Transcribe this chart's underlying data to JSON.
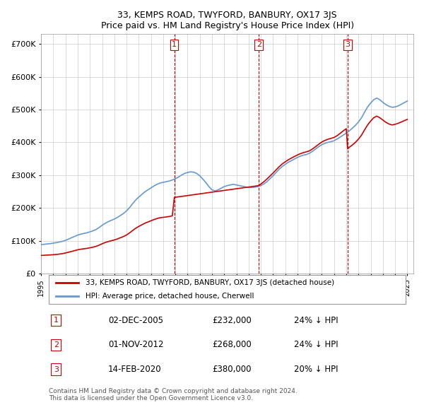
{
  "title": "33, KEMPS ROAD, TWYFORD, BANBURY, OX17 3JS",
  "subtitle": "Price paid vs. HM Land Registry's House Price Index (HPI)",
  "ylabel_ticks": [
    "£0",
    "£100K",
    "£200K",
    "£300K",
    "£400K",
    "£500K",
    "£600K",
    "£700K"
  ],
  "ylim": [
    0,
    730000
  ],
  "xlim_start": 1995.0,
  "xlim_end": 2025.5,
  "sale_dates": [
    2005.917,
    2012.833,
    2020.12
  ],
  "sale_prices": [
    232000,
    268000,
    380000
  ],
  "sale_labels": [
    "1",
    "2",
    "3"
  ],
  "sale_date_strs": [
    "02-DEC-2005",
    "01-NOV-2012",
    "14-FEB-2020"
  ],
  "sale_price_strs": [
    "£232,000",
    "£268,000",
    "£380,000"
  ],
  "sale_pct_strs": [
    "24% ↓ HPI",
    "24% ↓ HPI",
    "20% ↓ HPI"
  ],
  "red_color": "#cc0000",
  "blue_color": "#6699cc",
  "vline_color": "#cc0000",
  "grid_color": "#cccccc",
  "background_color": "#ffffff",
  "legend_label_red": "33, KEMPS ROAD, TWYFORD, BANBURY, OX17 3JS (detached house)",
  "legend_label_blue": "HPI: Average price, detached house, Cherwell",
  "footer_text": "Contains HM Land Registry data © Crown copyright and database right 2024.\nThis data is licensed under the Open Government Licence v3.0.",
  "hpi_years": [
    1995.0,
    1995.25,
    1995.5,
    1995.75,
    1996.0,
    1996.25,
    1996.5,
    1996.75,
    1997.0,
    1997.25,
    1997.5,
    1997.75,
    1998.0,
    1998.25,
    1998.5,
    1998.75,
    1999.0,
    1999.25,
    1999.5,
    1999.75,
    2000.0,
    2000.25,
    2000.5,
    2000.75,
    2001.0,
    2001.25,
    2001.5,
    2001.75,
    2002.0,
    2002.25,
    2002.5,
    2002.75,
    2003.0,
    2003.25,
    2003.5,
    2003.75,
    2004.0,
    2004.25,
    2004.5,
    2004.75,
    2005.0,
    2005.25,
    2005.5,
    2005.75,
    2006.0,
    2006.25,
    2006.5,
    2006.75,
    2007.0,
    2007.25,
    2007.5,
    2007.75,
    2008.0,
    2008.25,
    2008.5,
    2008.75,
    2009.0,
    2009.25,
    2009.5,
    2009.75,
    2010.0,
    2010.25,
    2010.5,
    2010.75,
    2011.0,
    2011.25,
    2011.5,
    2011.75,
    2012.0,
    2012.25,
    2012.5,
    2012.75,
    2013.0,
    2013.25,
    2013.5,
    2013.75,
    2014.0,
    2014.25,
    2014.5,
    2014.75,
    2015.0,
    2015.25,
    2015.5,
    2015.75,
    2016.0,
    2016.25,
    2016.5,
    2016.75,
    2017.0,
    2017.25,
    2017.5,
    2017.75,
    2018.0,
    2018.25,
    2018.5,
    2018.75,
    2019.0,
    2019.25,
    2019.5,
    2019.75,
    2020.0,
    2020.25,
    2020.5,
    2020.75,
    2021.0,
    2021.25,
    2021.5,
    2021.75,
    2022.0,
    2022.25,
    2022.5,
    2022.75,
    2023.0,
    2023.25,
    2023.5,
    2023.75,
    2024.0,
    2024.25,
    2024.5,
    2024.75,
    2025.0
  ],
  "hpi_values": [
    88000,
    89000,
    90000,
    91000,
    92500,
    94000,
    96000,
    98000,
    101000,
    105000,
    109000,
    113000,
    117000,
    120000,
    122000,
    124000,
    127000,
    130000,
    134000,
    140000,
    147000,
    153000,
    158000,
    162000,
    166000,
    171000,
    177000,
    183000,
    191000,
    201000,
    213000,
    224000,
    233000,
    241000,
    249000,
    255000,
    261000,
    267000,
    272000,
    276000,
    278000,
    280000,
    282000,
    285000,
    289000,
    294000,
    300000,
    305000,
    308000,
    310000,
    309000,
    305000,
    298000,
    288000,
    277000,
    265000,
    255000,
    252000,
    255000,
    260000,
    265000,
    268000,
    270000,
    272000,
    270000,
    268000,
    266000,
    264000,
    262000,
    262000,
    263000,
    265000,
    268000,
    273000,
    280000,
    289000,
    298000,
    308000,
    318000,
    326000,
    333000,
    339000,
    344000,
    349000,
    354000,
    358000,
    361000,
    363000,
    367000,
    373000,
    380000,
    387000,
    393000,
    397000,
    400000,
    402000,
    405000,
    410000,
    416000,
    422000,
    428000,
    435000,
    443000,
    452000,
    462000,
    475000,
    492000,
    508000,
    520000,
    530000,
    535000,
    530000,
    522000,
    515000,
    510000,
    507000,
    508000,
    511000,
    516000,
    521000,
    526000
  ],
  "red_years": [
    1995.0,
    1995.25,
    1995.5,
    1995.75,
    1996.0,
    1996.25,
    1996.5,
    1996.75,
    1997.0,
    1997.25,
    1997.5,
    1997.75,
    1998.0,
    1998.25,
    1998.5,
    1998.75,
    1999.0,
    1999.25,
    1999.5,
    1999.75,
    2000.0,
    2000.25,
    2000.5,
    2000.75,
    2001.0,
    2001.25,
    2001.5,
    2001.75,
    2002.0,
    2002.25,
    2002.5,
    2002.75,
    2003.0,
    2003.25,
    2003.5,
    2003.75,
    2004.0,
    2004.25,
    2004.5,
    2004.75,
    2005.0,
    2005.25,
    2005.5,
    2005.75,
    2005.917,
    2012.833,
    2012.833,
    2013.0,
    2013.25,
    2013.5,
    2013.75,
    2014.0,
    2014.25,
    2014.5,
    2014.75,
    2015.0,
    2015.25,
    2015.5,
    2015.75,
    2016.0,
    2016.25,
    2016.5,
    2016.75,
    2017.0,
    2017.25,
    2017.5,
    2017.75,
    2018.0,
    2018.25,
    2018.5,
    2018.75,
    2019.0,
    2019.25,
    2019.5,
    2019.75,
    2020.0,
    2020.12,
    2020.12,
    2020.25,
    2020.5,
    2020.75,
    2021.0,
    2021.25,
    2021.5,
    2021.75,
    2022.0,
    2022.25,
    2022.5,
    2022.75,
    2023.0,
    2023.25,
    2023.5,
    2023.75,
    2024.0,
    2024.25,
    2024.5,
    2024.75,
    2025.0
  ],
  "red_values": [
    55000,
    55500,
    56000,
    56500,
    57200,
    58000,
    59200,
    60500,
    62500,
    64800,
    67200,
    69700,
    72200,
    74000,
    75200,
    76500,
    78300,
    80200,
    82700,
    86200,
    90600,
    94400,
    97400,
    99800,
    102200,
    105300,
    109000,
    112700,
    117500,
    123800,
    131100,
    137900,
    143500,
    148400,
    153300,
    157000,
    160700,
    164500,
    167600,
    170100,
    171200,
    172400,
    173800,
    175700,
    232000,
    268000,
    268000,
    272700,
    279700,
    288200,
    297100,
    306200,
    316000,
    325600,
    333800,
    340600,
    346700,
    351800,
    356700,
    361500,
    365600,
    368700,
    371200,
    374300,
    380200,
    387200,
    394400,
    401100,
    405800,
    409400,
    412100,
    415000,
    420300,
    427400,
    435000,
    441500,
    380000,
    380000,
    385000,
    392000,
    400000,
    410000,
    422000,
    438000,
    453000,
    465000,
    475000,
    480000,
    475000,
    468000,
    461000,
    456000,
    453000,
    455000,
    458000,
    462000,
    466000,
    470000
  ]
}
